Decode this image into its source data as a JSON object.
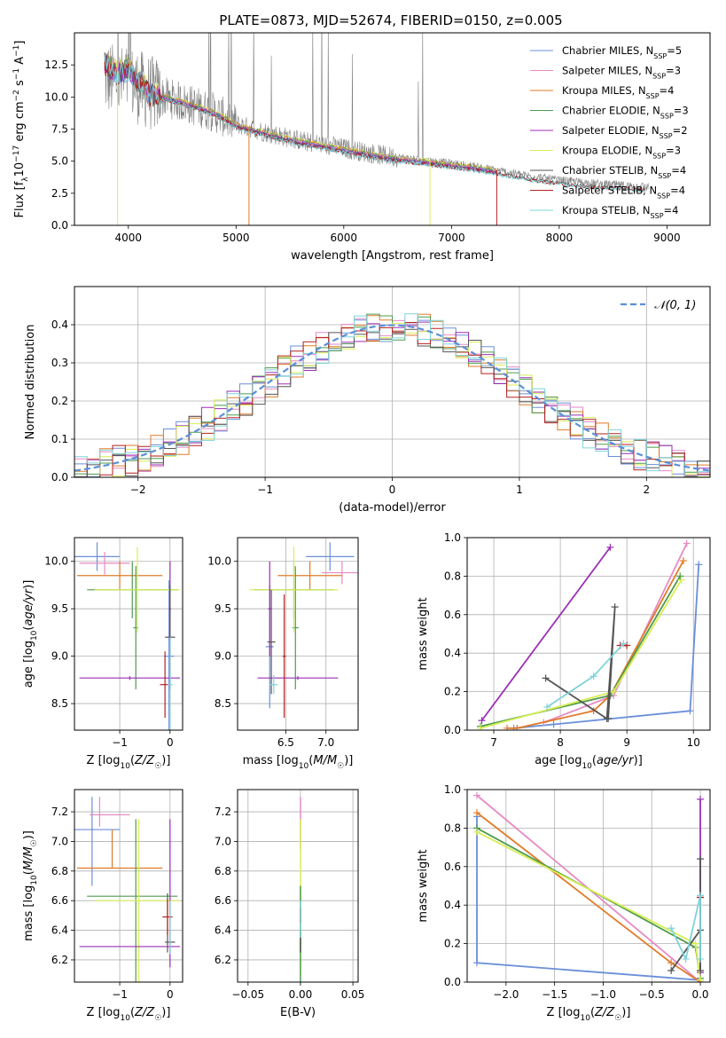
{
  "title": "PLATE=0873, MJD=52674, FIBERID=0150, z=0.005",
  "colors": {
    "Chabrier MILES": "#6a8fd8",
    "Salpeter MILES": "#e78ac3",
    "Kroupa MILES": "#e07b2a",
    "Chabrier ELODIE": "#4f9a4f",
    "Salpeter ELODIE": "#9b2fb5",
    "Kroupa ELODIE": "#d8ee55",
    "Chabrier STELIB": "#555555",
    "Salpeter STELIB": "#b22222",
    "Kroupa STELIB": "#7fd3d9",
    "data": "#808080",
    "gauss": "#5b8fd6",
    "grid": "#b0b0b0"
  },
  "chart_data": [
    {
      "id": "spectrum",
      "type": "line",
      "xlabel": "wavelength [Angstrom, rest frame]",
      "ylabel": "Flux [f_λ 10^{-17} erg cm^{-2} s^{-1} A^{-1}]",
      "xlim": [
        3500,
        9400
      ],
      "ylim": [
        0,
        15
      ],
      "xticks": [
        4000,
        5000,
        6000,
        7000,
        8000,
        9000
      ],
      "yticks": [
        0.0,
        2.5,
        5.0,
        7.5,
        10.0,
        12.5
      ],
      "grid": false,
      "legend_position": "upper right",
      "legend": [
        {
          "label": "Chabrier MILES, N",
          "sub": "SSP",
          "n": "=5",
          "series": "Chabrier MILES"
        },
        {
          "label": "Salpeter MILES, N",
          "sub": "SSP",
          "n": "=3",
          "series": "Salpeter MILES"
        },
        {
          "label": "Kroupa MILES, N",
          "sub": "SSP",
          "n": "=4",
          "series": "Kroupa MILES"
        },
        {
          "label": "Chabrier ELODIE, N",
          "sub": "SSP",
          "n": "=3",
          "series": "Chabrier ELODIE"
        },
        {
          "label": "Salpeter ELODIE, N",
          "sub": "SSP",
          "n": "=2",
          "series": "Salpeter ELODIE"
        },
        {
          "label": "Kroupa ELODIE, N",
          "sub": "SSP",
          "n": "=3",
          "series": "Kroupa ELODIE"
        },
        {
          "label": "Chabrier STELIB, N",
          "sub": "SSP",
          "n": "=4",
          "series": "Chabrier STELIB"
        },
        {
          "label": "Salpeter STELIB, N",
          "sub": "SSP",
          "n": "=4",
          "series": "Salpeter STELIB"
        },
        {
          "label": "Kroupa STELIB, N",
          "sub": "SSP",
          "n": "=4",
          "series": "Kroupa STELIB"
        }
      ],
      "data_envelope": {
        "x": [
          3800,
          3900,
          4000,
          4200,
          4500,
          4800,
          5000,
          5300,
          5600,
          6000,
          6400,
          6800,
          7200,
          7600,
          8000,
          8400,
          8800
        ],
        "y": [
          11.5,
          11.0,
          11.2,
          10.3,
          9.6,
          8.8,
          7.9,
          7.2,
          6.6,
          6.0,
          5.4,
          5.0,
          4.6,
          4.0,
          3.5,
          3.2,
          3.0
        ]
      },
      "model_envelope": {
        "x": [
          3780,
          3900,
          4000,
          4200,
          4500,
          4800,
          5000,
          5300,
          5600,
          6000,
          6400,
          6800,
          7200,
          7420
        ],
        "y": [
          12.8,
          12.0,
          12.3,
          10.4,
          9.7,
          8.9,
          7.9,
          7.2,
          6.6,
          6.0,
          5.4,
          5.0,
          4.6,
          4.3
        ]
      },
      "stelib_extension": {
        "x": [
          7420,
          7600,
          8000,
          8400,
          8800
        ],
        "y": [
          4.3,
          4.0,
          3.5,
          3.2,
          3.0
        ]
      }
    },
    {
      "id": "residuals",
      "type": "bar",
      "xlabel": "(data-model)/error",
      "ylabel": "Normed distribution",
      "xlim": [
        -2.5,
        2.5
      ],
      "ylim": [
        0,
        0.5
      ],
      "xticks": [
        -2,
        -1,
        0,
        1,
        2
      ],
      "yticks": [
        0.0,
        0.1,
        0.2,
        0.3,
        0.4
      ],
      "grid": true,
      "legend_label": "𝒩(0, 1)",
      "legend_position": "upper right",
      "bin_width": 0.1,
      "bin_start": -2.5
    },
    {
      "id": "age-vs-Z",
      "type": "scatter",
      "xlabel": "Z [log10(Z/Z☉)]",
      "ylabel": "age  [log10(age/yr)]",
      "xlim": [
        -1.9,
        0.25
      ],
      "ylim": [
        8.22,
        10.25
      ],
      "xticks": [
        -1,
        0
      ],
      "yticks": [
        8.5,
        9.0,
        9.5,
        10.0
      ],
      "grid": true,
      "crosses": [
        {
          "s": "Chabrier MILES",
          "x": -1.45,
          "xe": 0.45,
          "y": 10.05,
          "ye": 0.15
        },
        {
          "s": "Chabrier MILES",
          "x": -0.02,
          "xe": 0.1,
          "y": 9.0,
          "ye": 0.8
        },
        {
          "s": "Salpeter MILES",
          "x": -1.3,
          "xe": 0.5,
          "y": 9.98,
          "ye": 0.12
        },
        {
          "s": "Kroupa MILES",
          "x": -1.0,
          "xe": 0.85,
          "y": 9.85,
          "ye": 0.15
        },
        {
          "s": "Chabrier ELODIE",
          "x": -0.75,
          "xe": 0.9,
          "y": 9.7,
          "ye": 0.3
        },
        {
          "s": "Chabrier ELODIE",
          "x": -0.68,
          "xe": 0.05,
          "y": 9.3,
          "ye": 0.65
        },
        {
          "s": "Kroupa ELODIE",
          "x": -0.65,
          "xe": 0.85,
          "y": 9.7,
          "ye": 0.45
        },
        {
          "s": "Salpeter ELODIE",
          "x": -0.8,
          "xe": 1.0,
          "y": 8.77,
          "ye": 0.02
        },
        {
          "s": "Salpeter ELODIE",
          "x": 0.0,
          "xe": 0.02,
          "y": 9.5,
          "ye": 0.5
        },
        {
          "s": "Chabrier STELIB",
          "x": 0.0,
          "xe": 0.1,
          "y": 9.2,
          "ye": 0.55
        },
        {
          "s": "Salpeter STELIB",
          "x": -0.1,
          "xe": 0.1,
          "y": 8.7,
          "ye": 0.35
        },
        {
          "s": "Kroupa STELIB",
          "x": 0.0,
          "xe": 0.05,
          "y": 8.7,
          "ye": 0.5
        }
      ]
    },
    {
      "id": "age-vs-mass",
      "type": "scatter",
      "xlabel": "mass [log10(M/M☉)]",
      "ylabel": "",
      "xlim": [
        5.9,
        7.4
      ],
      "ylim": [
        8.22,
        10.25
      ],
      "xticks": [
        6.5,
        7.0
      ],
      "yticks": [
        8.5,
        9.0,
        9.5,
        10.0
      ],
      "grid": true,
      "crosses": [
        {
          "s": "Chabrier MILES",
          "x": 7.05,
          "xe": 0.3,
          "y": 10.05,
          "ye": 0.15
        },
        {
          "s": "Chabrier MILES",
          "x": 6.3,
          "xe": 0.05,
          "y": 9.1,
          "ye": 0.65
        },
        {
          "s": "Salpeter MILES",
          "x": 7.2,
          "xe": 0.25,
          "y": 9.88,
          "ye": 0.12
        },
        {
          "s": "Kroupa MILES",
          "x": 6.8,
          "xe": 0.4,
          "y": 9.85,
          "ye": 0.15
        },
        {
          "s": "Chabrier ELODIE",
          "x": 6.6,
          "xe": 0.5,
          "y": 9.7,
          "ye": 0.3
        },
        {
          "s": "Chabrier ELODIE",
          "x": 6.62,
          "xe": 0.04,
          "y": 9.3,
          "ye": 0.65
        },
        {
          "s": "Kroupa ELODIE",
          "x": 6.6,
          "xe": 0.55,
          "y": 9.7,
          "ye": 0.45
        },
        {
          "s": "Salpeter ELODIE",
          "x": 6.65,
          "xe": 0.5,
          "y": 8.77,
          "ye": 0.02
        },
        {
          "s": "Salpeter ELODIE",
          "x": 6.3,
          "xe": 0.02,
          "y": 9.5,
          "ye": 0.5
        },
        {
          "s": "Chabrier STELIB",
          "x": 6.32,
          "xe": 0.05,
          "y": 9.15,
          "ye": 0.55
        },
        {
          "s": "Salpeter STELIB",
          "x": 6.48,
          "xe": 0.02,
          "y": 9.0,
          "ye": 0.65
        },
        {
          "s": "Kroupa STELIB",
          "x": 6.35,
          "xe": 0.05,
          "y": 8.7,
          "ye": 0.1
        }
      ]
    },
    {
      "id": "weight-vs-age",
      "type": "line",
      "xlabel": "age  [log10(age/yr)]",
      "ylabel": "mass weight",
      "xlim": [
        6.6,
        10.25
      ],
      "ylim": [
        0,
        1.0
      ],
      "xticks": [
        7,
        8,
        9,
        10
      ],
      "yticks": [
        0.0,
        0.2,
        0.4,
        0.6,
        0.8,
        1.0
      ],
      "grid": true,
      "series": [
        {
          "s": "Chabrier MILES",
          "x": [
            7.3,
            7.9,
            9.95,
            10.08
          ],
          "y": [
            0.01,
            0.03,
            0.1,
            0.86
          ]
        },
        {
          "s": "Salpeter MILES",
          "x": [
            7.75,
            8.8,
            9.9
          ],
          "y": [
            0.04,
            0.18,
            0.97
          ]
        },
        {
          "s": "Kroupa MILES",
          "x": [
            7.2,
            7.35,
            8.5,
            8.75,
            9.85
          ],
          "y": [
            0.01,
            0.01,
            0.1,
            0.18,
            0.88
          ]
        },
        {
          "s": "Chabrier ELODIE",
          "x": [
            6.8,
            8.75,
            9.8
          ],
          "y": [
            0.02,
            0.18,
            0.8
          ]
        },
        {
          "s": "Salpeter ELODIE",
          "x": [
            6.82,
            8.75
          ],
          "y": [
            0.05,
            0.95
          ]
        },
        {
          "s": "Kroupa ELODIE",
          "x": [
            6.8,
            8.8,
            9.82
          ],
          "y": [
            0.01,
            0.2,
            0.78
          ]
        },
        {
          "s": "Chabrier STELIB",
          "x": [
            7.78,
            8.7,
            8.82,
            8.72
          ],
          "y": [
            0.27,
            0.06,
            0.64,
            0.06
          ]
        },
        {
          "s": "Salpeter STELIB",
          "x": [
            8.9,
            9.0
          ],
          "y": [
            0.44,
            0.44
          ]
        },
        {
          "s": "Kroupa STELIB",
          "x": [
            7.8,
            8.5,
            8.95
          ],
          "y": [
            0.12,
            0.28,
            0.45
          ]
        }
      ]
    },
    {
      "id": "mass-vs-Z",
      "type": "scatter",
      "xlabel": "Z [log10(Z/Z☉)]",
      "ylabel": "mass [log10(M/M☉)]",
      "xlim": [
        -1.9,
        0.25
      ],
      "ylim": [
        6.05,
        7.35
      ],
      "xticks": [
        -1,
        0
      ],
      "yticks": [
        6.2,
        6.4,
        6.6,
        6.8,
        7.0,
        7.2
      ],
      "grid": true,
      "crosses": [
        {
          "s": "Chabrier MILES",
          "x": -1.45,
          "xe": 0.45,
          "y": 7.08,
          "ye": 0.0
        },
        {
          "s": "Chabrier MILES",
          "x": -1.55,
          "xe": 0.0,
          "y": 7.0,
          "ye": 0.3
        },
        {
          "s": "Salpeter MILES",
          "x": -1.2,
          "xe": 0.4,
          "y": 7.18,
          "ye": 0.0
        },
        {
          "s": "Salpeter MILES",
          "x": -1.4,
          "xe": 0.0,
          "y": 7.2,
          "ye": 0.1
        },
        {
          "s": "Kroupa MILES",
          "x": -1.0,
          "xe": 0.85,
          "y": 6.82,
          "ye": 0.0
        },
        {
          "s": "Kroupa MILES",
          "x": -1.15,
          "xe": 0.0,
          "y": 6.95,
          "ye": 0.13
        },
        {
          "s": "Chabrier ELODIE",
          "x": -0.75,
          "xe": 0.9,
          "y": 6.63,
          "ye": 0.0
        },
        {
          "s": "Chabrier ELODIE",
          "x": -0.68,
          "xe": 0.0,
          "y": 6.6,
          "ye": 0.55
        },
        {
          "s": "Kroupa ELODIE",
          "x": -0.65,
          "xe": 0.85,
          "y": 6.6,
          "ye": 0.0
        },
        {
          "s": "Kroupa ELODIE",
          "x": -0.62,
          "xe": 0.0,
          "y": 6.6,
          "ye": 0.55
        },
        {
          "s": "Salpeter ELODIE",
          "x": -0.8,
          "xe": 1.0,
          "y": 6.29,
          "ye": 0.0
        },
        {
          "s": "Salpeter ELODIE",
          "x": 0.0,
          "xe": 0.0,
          "y": 6.65,
          "ye": 0.5
        },
        {
          "s": "Chabrier STELIB",
          "x": 0.0,
          "xe": 0.1,
          "y": 6.32,
          "ye": 0.0
        },
        {
          "s": "Chabrier STELIB",
          "x": -0.05,
          "xe": 0.0,
          "y": 6.45,
          "ye": 0.2
        },
        {
          "s": "Salpeter STELIB",
          "x": -0.05,
          "xe": 0.1,
          "y": 6.49,
          "ye": 0.0
        },
        {
          "s": "Salpeter STELIB",
          "x": -0.05,
          "xe": 0.0,
          "y": 6.49,
          "ye": 0.12
        },
        {
          "s": "Kroupa STELIB",
          "x": 0.0,
          "xe": 0.0,
          "y": 6.42,
          "ye": 0.18
        }
      ]
    },
    {
      "id": "mass-vs-EBV",
      "type": "scatter",
      "xlabel": "E(B-V)",
      "ylabel": "",
      "xlim": [
        -0.06,
        0.055
      ],
      "ylim": [
        6.05,
        7.35
      ],
      "xticks": [
        -0.05,
        0.0,
        0.05
      ],
      "yticks": [
        6.2,
        6.4,
        6.6,
        6.8,
        7.0,
        7.2
      ],
      "grid": true,
      "segments": [
        {
          "s": "Salpeter MILES",
          "y0": 6.95,
          "y1": 7.3
        },
        {
          "s": "Kroupa ELODIE",
          "y0": 6.1,
          "y1": 7.15
        },
        {
          "s": "Chabrier ELODIE",
          "y0": 6.05,
          "y1": 6.7
        },
        {
          "s": "Salpeter STELIB",
          "y0": 6.45,
          "y1": 6.55
        },
        {
          "s": "Chabrier STELIB",
          "y0": 6.25,
          "y1": 6.4
        },
        {
          "s": "Kroupa STELIB",
          "y0": 6.35,
          "y1": 6.6
        }
      ]
    },
    {
      "id": "weight-vs-Z",
      "type": "line",
      "xlabel": "Z [log10(Z/Z☉)]",
      "ylabel": "mass weight",
      "xlim": [
        -2.4,
        0.1
      ],
      "ylim": [
        0,
        1.0
      ],
      "xticks": [
        -2.0,
        -1.5,
        -1.0,
        -0.5,
        0.0
      ],
      "yticks": [
        0.0,
        0.2,
        0.4,
        0.6,
        0.8,
        1.0
      ],
      "grid": true,
      "series": [
        {
          "s": "Chabrier MILES",
          "x": [
            -2.3,
            -2.3,
            0.0
          ],
          "y": [
            0.86,
            0.1,
            0.01
          ]
        },
        {
          "s": "Salpeter MILES",
          "x": [
            -2.3,
            0.0
          ],
          "y": [
            0.97,
            0.0
          ]
        },
        {
          "s": "Kroupa MILES",
          "x": [
            -2.3,
            -0.3,
            0.0
          ],
          "y": [
            0.88,
            0.1,
            0.0
          ]
        },
        {
          "s": "Chabrier ELODIE",
          "x": [
            -2.3,
            -0.05,
            0.0
          ],
          "y": [
            0.8,
            0.18,
            0.02
          ]
        },
        {
          "s": "Salpeter ELODIE",
          "x": [
            0.0,
            0.0
          ],
          "y": [
            0.95,
            0.05
          ]
        },
        {
          "s": "Kroupa ELODIE",
          "x": [
            -2.3,
            -0.05,
            0.0
          ],
          "y": [
            0.78,
            0.2,
            0.01
          ]
        },
        {
          "s": "Chabrier STELIB",
          "x": [
            -0.3,
            0.0,
            0.0,
            0.0
          ],
          "y": [
            0.06,
            0.27,
            0.64,
            0.06
          ]
        },
        {
          "s": "Salpeter STELIB",
          "x": [
            0.0,
            0.0
          ],
          "y": [
            0.44,
            0.44
          ]
        },
        {
          "s": "Kroupa STELIB",
          "x": [
            -0.3,
            -0.15,
            0.0,
            0.0
          ],
          "y": [
            0.28,
            0.12,
            0.45,
            0.12
          ]
        }
      ]
    }
  ]
}
